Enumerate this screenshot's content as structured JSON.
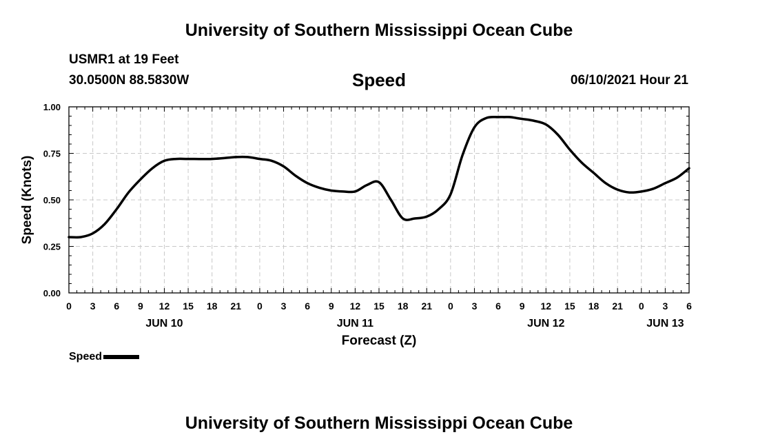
{
  "header": {
    "title": "University of Southern Mississippi Ocean Cube",
    "station": "USMR1 at 19 Feet",
    "coords": "30.0500N  88.5830W",
    "datetime": "06/10/2021 Hour 21"
  },
  "footer": {
    "title": "University of Southern Mississippi Ocean Cube"
  },
  "legend": {
    "label": "Speed"
  },
  "chart_data": {
    "type": "line",
    "title": "Speed",
    "xlabel": "Forecast (Z)",
    "ylabel": "Speed (Knots)",
    "xlim": [
      0,
      78
    ],
    "ylim": [
      0,
      1
    ],
    "grid": true,
    "yticks": [
      0,
      0.25,
      0.5,
      0.75,
      1.0
    ],
    "ytick_labels": [
      "0.00",
      "0.25",
      "0.50",
      "0.75",
      "1.00"
    ],
    "xticks": [
      0,
      3,
      6,
      9,
      12,
      15,
      18,
      21,
      24,
      27,
      30,
      33,
      36,
      39,
      42,
      45,
      48,
      51,
      54,
      57,
      60,
      63,
      66,
      69,
      72,
      75,
      78
    ],
    "xtick_labels": [
      "0",
      "3",
      "6",
      "9",
      "12",
      "15",
      "18",
      "21",
      "0",
      "3",
      "6",
      "9",
      "12",
      "15",
      "18",
      "21",
      "0",
      "3",
      "6",
      "9",
      "12",
      "15",
      "18",
      "21",
      "0",
      "3",
      "6"
    ],
    "date_labels": [
      {
        "x": 12,
        "label": "JUN 10"
      },
      {
        "x": 36,
        "label": "JUN 11"
      },
      {
        "x": 60,
        "label": "JUN 12"
      },
      {
        "x": 75,
        "label": "JUN 13"
      }
    ],
    "series": [
      {
        "name": "Speed",
        "color": "#000000",
        "x": [
          0,
          1.5,
          3,
          4.5,
          6,
          7.5,
          9,
          10.5,
          12,
          13.5,
          15,
          18,
          21,
          22.5,
          24,
          25.5,
          27,
          28.5,
          30,
          31.5,
          33,
          34.5,
          36,
          37.5,
          39,
          40.5,
          42,
          43.5,
          45,
          46.5,
          48,
          49.5,
          51,
          52.5,
          54,
          54.75,
          55.5,
          56.25,
          57,
          58.5,
          60,
          61.5,
          63,
          64.5,
          66,
          67.5,
          69,
          70.5,
          72,
          73.5,
          75,
          76.5,
          78
        ],
        "values": [
          0.3,
          0.3,
          0.32,
          0.37,
          0.45,
          0.54,
          0.61,
          0.67,
          0.71,
          0.72,
          0.72,
          0.72,
          0.73,
          0.73,
          0.72,
          0.71,
          0.68,
          0.63,
          0.59,
          0.565,
          0.55,
          0.545,
          0.545,
          0.58,
          0.595,
          0.5,
          0.4,
          0.4,
          0.41,
          0.45,
          0.53,
          0.74,
          0.89,
          0.94,
          0.945,
          0.945,
          0.945,
          0.94,
          0.935,
          0.925,
          0.905,
          0.85,
          0.77,
          0.7,
          0.645,
          0.59,
          0.555,
          0.54,
          0.545,
          0.56,
          0.59,
          0.62,
          0.67
        ]
      }
    ]
  }
}
